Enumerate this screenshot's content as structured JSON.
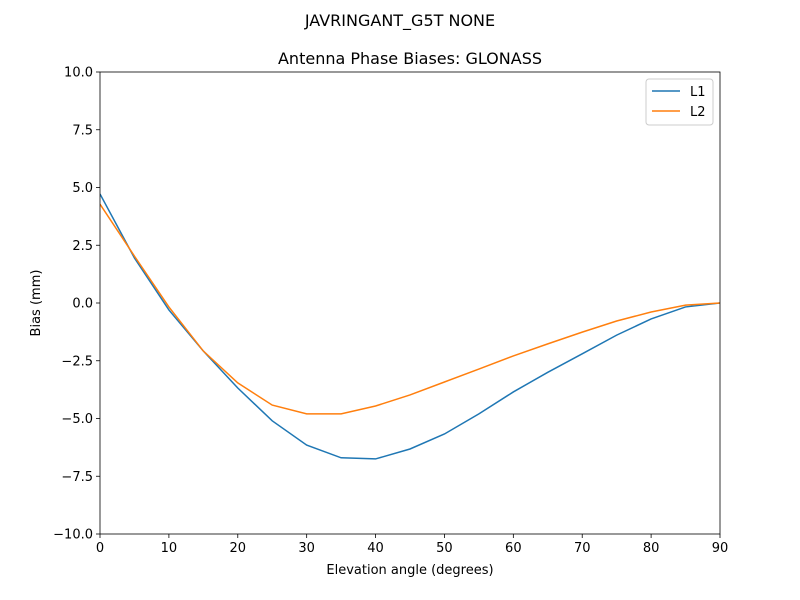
{
  "chart_data": {
    "type": "line",
    "suptitle": "JAVRINGANT_G5T  NONE",
    "title": "Antenna Phase Biases: GLONASS",
    "xlabel": "Elevation angle (degrees)",
    "ylabel": "Bias (mm)",
    "xlim": [
      0,
      90
    ],
    "ylim": [
      -10,
      10
    ],
    "xticks": [
      0,
      10,
      20,
      30,
      40,
      50,
      60,
      70,
      80,
      90
    ],
    "yticks": [
      -10.0,
      -7.5,
      -5.0,
      -2.5,
      0.0,
      2.5,
      5.0,
      7.5,
      10.0
    ],
    "ytick_labels": [
      "−10.0",
      "−7.5",
      "−5.0",
      "−2.5",
      "0.0",
      "2.5",
      "5.0",
      "7.5",
      "10.0"
    ],
    "grid": false,
    "legend_placement": "top-right",
    "x": [
      0,
      5,
      10,
      15,
      20,
      25,
      30,
      35,
      40,
      45,
      50,
      55,
      60,
      65,
      70,
      75,
      80,
      85,
      90
    ],
    "series": [
      {
        "name": "L1",
        "color": "#1f77b4",
        "values": [
          4.72,
          1.95,
          -0.3,
          -2.08,
          -3.68,
          -5.1,
          -6.15,
          -6.7,
          -6.75,
          -6.32,
          -5.67,
          -4.8,
          -3.85,
          -3.0,
          -2.2,
          -1.39,
          -0.69,
          -0.17,
          0.0
        ]
      },
      {
        "name": "L2",
        "color": "#ff7f0e",
        "values": [
          4.28,
          2.03,
          -0.17,
          -2.08,
          -3.46,
          -4.42,
          -4.8,
          -4.8,
          -4.46,
          -3.98,
          -3.42,
          -2.86,
          -2.29,
          -1.77,
          -1.26,
          -0.78,
          -0.39,
          -0.09,
          0.0
        ]
      }
    ]
  }
}
